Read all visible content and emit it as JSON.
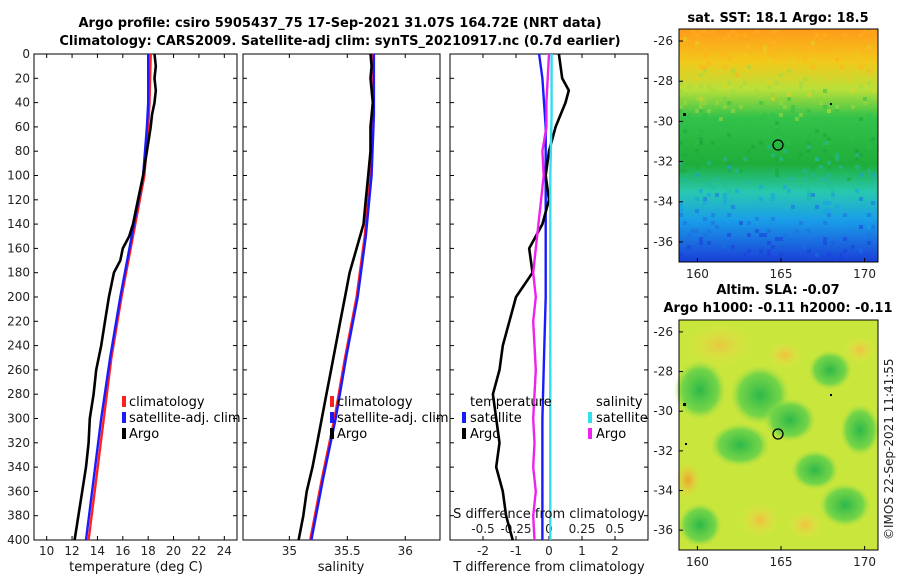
{
  "titles": {
    "line1": "Argo profile: csiro 5905437_75 17-Sep-2021 31.07S 164.72E (NRT data)",
    "line2": "Climatology: CARS2009. Satellite-adj clim: synTS_20210917.nc (0.7d earlier)",
    "map1": "sat. SST: 18.1 Argo: 18.5",
    "map2a": "Altim. SLA: -0.07",
    "map2b": "Argo h1000: -0.11 h2000: -0.11",
    "credit": "©IMOS 22-Sep-2021 11:41:55"
  },
  "colors": {
    "climatology": "#ff2020",
    "satellite": "#1a1aff",
    "argo": "#000000",
    "salinity_sat": "#33ddee",
    "salinity_argo": "#ee22ee"
  },
  "chart_data": [
    {
      "type": "line",
      "name": "temperature",
      "xlabel": "temperature (deg C)",
      "ylabel": "",
      "xlim": [
        9,
        25
      ],
      "ylim": [
        400,
        0
      ],
      "xticks": [
        "10",
        "12",
        "14",
        "16",
        "18",
        "20",
        "22",
        "24"
      ],
      "yticks": [
        "0",
        "20",
        "40",
        "60",
        "80",
        "100",
        "120",
        "140",
        "160",
        "180",
        "200",
        "220",
        "240",
        "260",
        "280",
        "300",
        "320",
        "340",
        "360",
        "380",
        "400"
      ],
      "legend": [
        "climatology",
        "satellite-adj. clim",
        "Argo"
      ],
      "series": [
        {
          "name": "climatology",
          "depth": [
            0,
            40,
            60,
            100,
            150,
            200,
            250,
            300,
            350,
            400
          ],
          "values": [
            18.2,
            18.1,
            18.0,
            17.7,
            16.8,
            15.9,
            15.1,
            14.5,
            13.9,
            13.3
          ]
        },
        {
          "name": "satellite-adj. clim",
          "depth": [
            0,
            40,
            60,
            100,
            150,
            200,
            250,
            300,
            350,
            400
          ],
          "values": [
            18.0,
            18.0,
            17.9,
            17.6,
            16.7,
            15.8,
            15.0,
            14.3,
            13.7,
            13.1
          ]
        },
        {
          "name": "Argo",
          "depth": [
            0,
            10,
            20,
            30,
            40,
            50,
            60,
            80,
            100,
            120,
            140,
            150,
            160,
            170,
            180,
            190,
            200,
            220,
            240,
            260,
            280,
            300,
            320,
            340,
            360,
            380,
            400
          ],
          "values": [
            18.5,
            18.6,
            18.5,
            18.6,
            18.5,
            18.3,
            18.2,
            17.9,
            17.6,
            17.2,
            16.8,
            16.5,
            16.0,
            15.8,
            15.3,
            15.1,
            14.9,
            14.6,
            14.3,
            13.9,
            13.7,
            13.4,
            13.3,
            13.1,
            12.8,
            12.5,
            12.2
          ]
        }
      ]
    },
    {
      "type": "line",
      "name": "salinity",
      "xlabel": "salinity",
      "ylabel": "",
      "xlim": [
        34.6,
        36.3
      ],
      "ylim": [
        400,
        0
      ],
      "xticks": [
        "35",
        "35.5",
        "36"
      ],
      "legend": [
        "climatology",
        "satellite-adj. clim",
        "Argo"
      ],
      "series": [
        {
          "name": "climatology",
          "depth": [
            0,
            50,
            100,
            150,
            200,
            250,
            300,
            350,
            400
          ],
          "values": [
            35.72,
            35.72,
            35.7,
            35.65,
            35.58,
            35.48,
            35.39,
            35.28,
            35.18
          ]
        },
        {
          "name": "satellite-adj. clim",
          "depth": [
            0,
            50,
            100,
            150,
            200,
            250,
            300,
            350,
            400
          ],
          "values": [
            35.73,
            35.73,
            35.71,
            35.66,
            35.59,
            35.49,
            35.4,
            35.29,
            35.19
          ]
        },
        {
          "name": "Argo",
          "depth": [
            0,
            10,
            20,
            40,
            60,
            80,
            100,
            120,
            140,
            160,
            180,
            200,
            220,
            240,
            260,
            280,
            300,
            320,
            340,
            360,
            380,
            400
          ],
          "values": [
            35.7,
            35.71,
            35.7,
            35.72,
            35.7,
            35.7,
            35.68,
            35.66,
            35.64,
            35.58,
            35.52,
            35.48,
            35.44,
            35.4,
            35.36,
            35.32,
            35.28,
            35.24,
            35.2,
            35.15,
            35.12,
            35.08
          ]
        }
      ]
    },
    {
      "type": "line",
      "name": "difference",
      "xlabel": "T difference from climatology",
      "x2label": "S difference from climatology",
      "xlim": [
        -3,
        3
      ],
      "x2lim": [
        -0.75,
        0.75
      ],
      "ylim": [
        400,
        0
      ],
      "xticks": [
        "-2",
        "-1",
        "0",
        "1",
        "2"
      ],
      "x2ticks": [
        "-0.5",
        "-0.25",
        "0",
        "0.25",
        "0.5"
      ],
      "legend_temperature": {
        "title": "temperature",
        "items": [
          "satellite",
          "Argo"
        ]
      },
      "legend_salinity": {
        "title": "salinity",
        "items": [
          "satellite",
          "Argo"
        ]
      },
      "series": [
        {
          "name": "T satellite",
          "depth": [
            0,
            20,
            40,
            60,
            80,
            100,
            150,
            200,
            250,
            300,
            350,
            400
          ],
          "values": [
            -0.3,
            -0.2,
            -0.15,
            -0.1,
            -0.1,
            -0.1,
            -0.1,
            -0.1,
            -0.15,
            -0.2,
            -0.2,
            -0.2
          ]
        },
        {
          "name": "T Argo",
          "depth": [
            0,
            20,
            30,
            40,
            60,
            80,
            100,
            120,
            140,
            160,
            180,
            200,
            220,
            240,
            260,
            280,
            300,
            320,
            340,
            360,
            380,
            400
          ],
          "values": [
            0.3,
            0.4,
            0.6,
            0.5,
            0.2,
            0.0,
            -0.1,
            0.0,
            -0.2,
            -0.6,
            -0.5,
            -1.0,
            -1.2,
            -1.4,
            -1.5,
            -1.7,
            -1.6,
            -1.5,
            -1.6,
            -1.4,
            -1.3,
            -1.1
          ]
        },
        {
          "name": "S satellite",
          "depth": [
            0,
            50,
            100,
            150,
            200,
            250,
            300,
            350,
            400
          ],
          "values": [
            0.02,
            0.02,
            0.01,
            0.01,
            0.01,
            0.01,
            0.01,
            0.01,
            0.01
          ]
        },
        {
          "name": "S Argo",
          "depth": [
            0,
            20,
            40,
            60,
            80,
            100,
            120,
            140,
            160,
            180,
            200,
            220,
            240,
            260,
            280,
            300,
            320,
            340,
            360,
            380,
            400
          ],
          "values": [
            0.0,
            -0.01,
            -0.02,
            -0.02,
            -0.05,
            -0.04,
            -0.06,
            -0.08,
            -0.1,
            -0.12,
            -0.1,
            -0.12,
            -0.11,
            -0.1,
            -0.11,
            -0.12,
            -0.11,
            -0.12,
            -0.1,
            -0.12,
            -0.11
          ]
        }
      ]
    }
  ],
  "maps": [
    {
      "name": "sst-map",
      "xticks": [
        "160",
        "165",
        "170"
      ],
      "yticks": [
        "-26",
        "-28",
        "-30",
        "-32",
        "-34",
        "-36"
      ],
      "marker": {
        "lon": 164.72,
        "lat": -31.07
      }
    },
    {
      "name": "sla-map",
      "xticks": [
        "160",
        "165",
        "170"
      ],
      "yticks": [
        "-26",
        "-28",
        "-30",
        "-32",
        "-34",
        "-36"
      ],
      "marker": {
        "lon": 164.72,
        "lat": -31.07
      }
    }
  ]
}
